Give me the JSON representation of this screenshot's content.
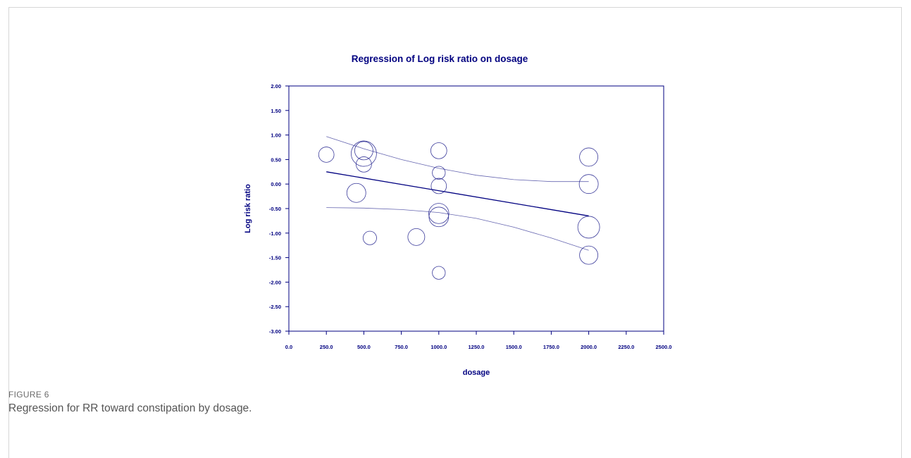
{
  "figure": {
    "label": "FIGURE 6",
    "caption": "Regression for RR toward constipation by dosage."
  },
  "colors": {
    "navy": "#000080",
    "bubble": "#3a3a9a",
    "ci": "#6666b0"
  },
  "chart_data": {
    "type": "scatter",
    "title": "Regression of Log risk ratio on dosage",
    "xlabel": "dosage",
    "ylabel": "Log risk ratio",
    "xlim": [
      0,
      2500
    ],
    "ylim": [
      -3,
      2
    ],
    "x_ticks": [
      0,
      250,
      500,
      750,
      1000,
      1250,
      1500,
      1750,
      2000,
      2250,
      2500
    ],
    "x_tick_labels": [
      "0.0",
      "250.0",
      "500.0",
      "750.0",
      "1000.0",
      "1250.0",
      "1500.0",
      "1750.0",
      "2000.0",
      "2250.0",
      "2500.0"
    ],
    "y_ticks": [
      2,
      1.5,
      1,
      0.5,
      0,
      -0.5,
      -1,
      -1.5,
      -2,
      -2.5,
      -3
    ],
    "y_tick_labels": [
      "2.00",
      "1.50",
      "1.00",
      "0.50",
      "0.00",
      "-0.50",
      "-1.00",
      "-1.50",
      "-2.00",
      "-2.50",
      "-3.00"
    ],
    "grid": false,
    "points": [
      {
        "x": 250,
        "y": 0.6,
        "weight": 0.7
      },
      {
        "x": 500,
        "y": 0.62,
        "weight": 2.4
      },
      {
        "x": 500,
        "y": 0.68,
        "weight": 1.1
      },
      {
        "x": 500,
        "y": 0.4,
        "weight": 0.7
      },
      {
        "x": 450,
        "y": -0.18,
        "weight": 1.2
      },
      {
        "x": 540,
        "y": -1.1,
        "weight": 0.5
      },
      {
        "x": 850,
        "y": -1.08,
        "weight": 0.9
      },
      {
        "x": 1000,
        "y": 0.68,
        "weight": 0.8
      },
      {
        "x": 1000,
        "y": 0.23,
        "weight": 0.45
      },
      {
        "x": 1000,
        "y": -0.04,
        "weight": 0.7
      },
      {
        "x": 1000,
        "y": -0.6,
        "weight": 1.4
      },
      {
        "x": 1000,
        "y": -0.67,
        "weight": 1.3
      },
      {
        "x": 1000,
        "y": -1.81,
        "weight": 0.45
      },
      {
        "x": 2000,
        "y": 0.55,
        "weight": 1.1
      },
      {
        "x": 2000,
        "y": 0.0,
        "weight": 1.2
      },
      {
        "x": 2000,
        "y": -0.88,
        "weight": 1.7
      },
      {
        "x": 2000,
        "y": -1.45,
        "weight": 1.1
      }
    ],
    "regression": {
      "x": [
        250,
        2000
      ],
      "y": [
        0.25,
        -0.65
      ]
    },
    "ci_upper": {
      "x": [
        250,
        500,
        750,
        1000,
        1250,
        1500,
        1750,
        2000
      ],
      "y": [
        0.97,
        0.72,
        0.5,
        0.32,
        0.18,
        0.09,
        0.05,
        0.05
      ]
    },
    "ci_lower": {
      "x": [
        250,
        500,
        750,
        1000,
        1250,
        1500,
        1750,
        2000
      ],
      "y": [
        -0.48,
        -0.49,
        -0.52,
        -0.58,
        -0.7,
        -0.88,
        -1.1,
        -1.35
      ]
    }
  }
}
